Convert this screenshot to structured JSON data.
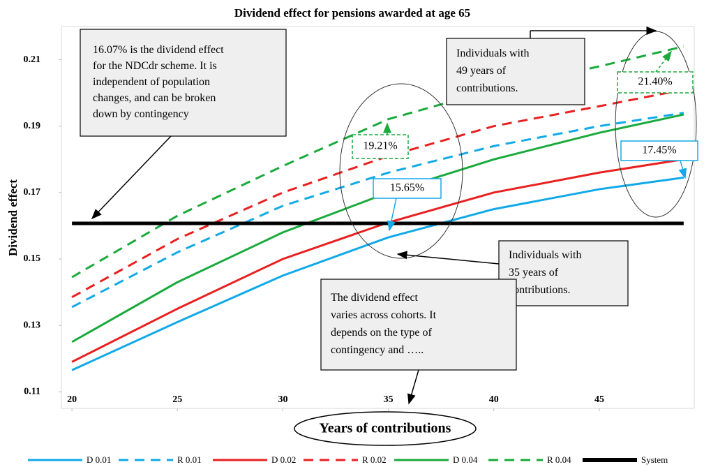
{
  "chart_data": {
    "type": "line",
    "title": "Dividend effect for pensions awarded at age 65",
    "x_label": "Years of contributions",
    "y_label": "Dividend effect",
    "x": [
      20,
      25,
      30,
      35,
      40,
      45,
      49
    ],
    "xlim": [
      19.5,
      49.5
    ],
    "xticks": [
      20,
      25,
      30,
      35,
      40,
      45
    ],
    "ylim": [
      0.105,
      0.22
    ],
    "yticks": [
      0.11,
      0.13,
      0.15,
      0.17,
      0.19,
      0.21
    ],
    "legend": "bottom",
    "series": [
      {
        "name": "D 0.01",
        "color": "#12a9e8",
        "dash": false,
        "values": [
          0.1165,
          0.131,
          0.145,
          0.1565,
          0.165,
          0.171,
          0.1745
        ]
      },
      {
        "name": "R 0.01",
        "color": "#12a9e8",
        "dash": true,
        "values": [
          0.1355,
          0.152,
          0.166,
          0.176,
          0.184,
          0.19,
          0.194
        ]
      },
      {
        "name": "D 0.02",
        "color": "#e8201f",
        "dash": false,
        "values": [
          0.119,
          0.135,
          0.15,
          0.161,
          0.17,
          0.176,
          0.18
        ]
      },
      {
        "name": "R 0.02",
        "color": "#e8201f",
        "dash": true,
        "values": [
          0.1385,
          0.156,
          0.17,
          0.181,
          0.19,
          0.196,
          0.201
        ]
      },
      {
        "name": "D 0.04",
        "color": "#1aaa3c",
        "dash": false,
        "values": [
          0.125,
          0.143,
          0.158,
          0.17,
          0.18,
          0.188,
          0.1935
        ]
      },
      {
        "name": "R 0.04",
        "color": "#1aaa3c",
        "dash": true,
        "values": [
          0.1445,
          0.163,
          0.178,
          0.1921,
          0.201,
          0.208,
          0.214
        ]
      },
      {
        "name": "System",
        "color": "#000000",
        "dash": false,
        "values": [
          0.1607,
          0.1607,
          0.1607,
          0.1607,
          0.1607,
          0.1607,
          0.1607
        ]
      }
    ],
    "annotations": [
      {
        "lines": [
          "16.07% is the dividend effect",
          "for the NDCdr scheme. It is",
          "independent of population",
          "changes, and can be broken",
          "down by contingency"
        ]
      },
      {
        "lines": [
          "Individuals with",
          "49 years of",
          "contributions."
        ]
      },
      {
        "lines": [
          "Individuals with",
          "35 years of",
          "contributions."
        ]
      },
      {
        "lines": [
          "The dividend effect",
          "varies across cohorts. It",
          "depends on the type of",
          "contingency and ….."
        ]
      },
      {
        "lines": [
          "19.21%"
        ]
      },
      {
        "lines": [
          "15.65%"
        ]
      },
      {
        "lines": [
          "17.45%"
        ]
      },
      {
        "lines": [
          "21.40%"
        ]
      }
    ]
  }
}
